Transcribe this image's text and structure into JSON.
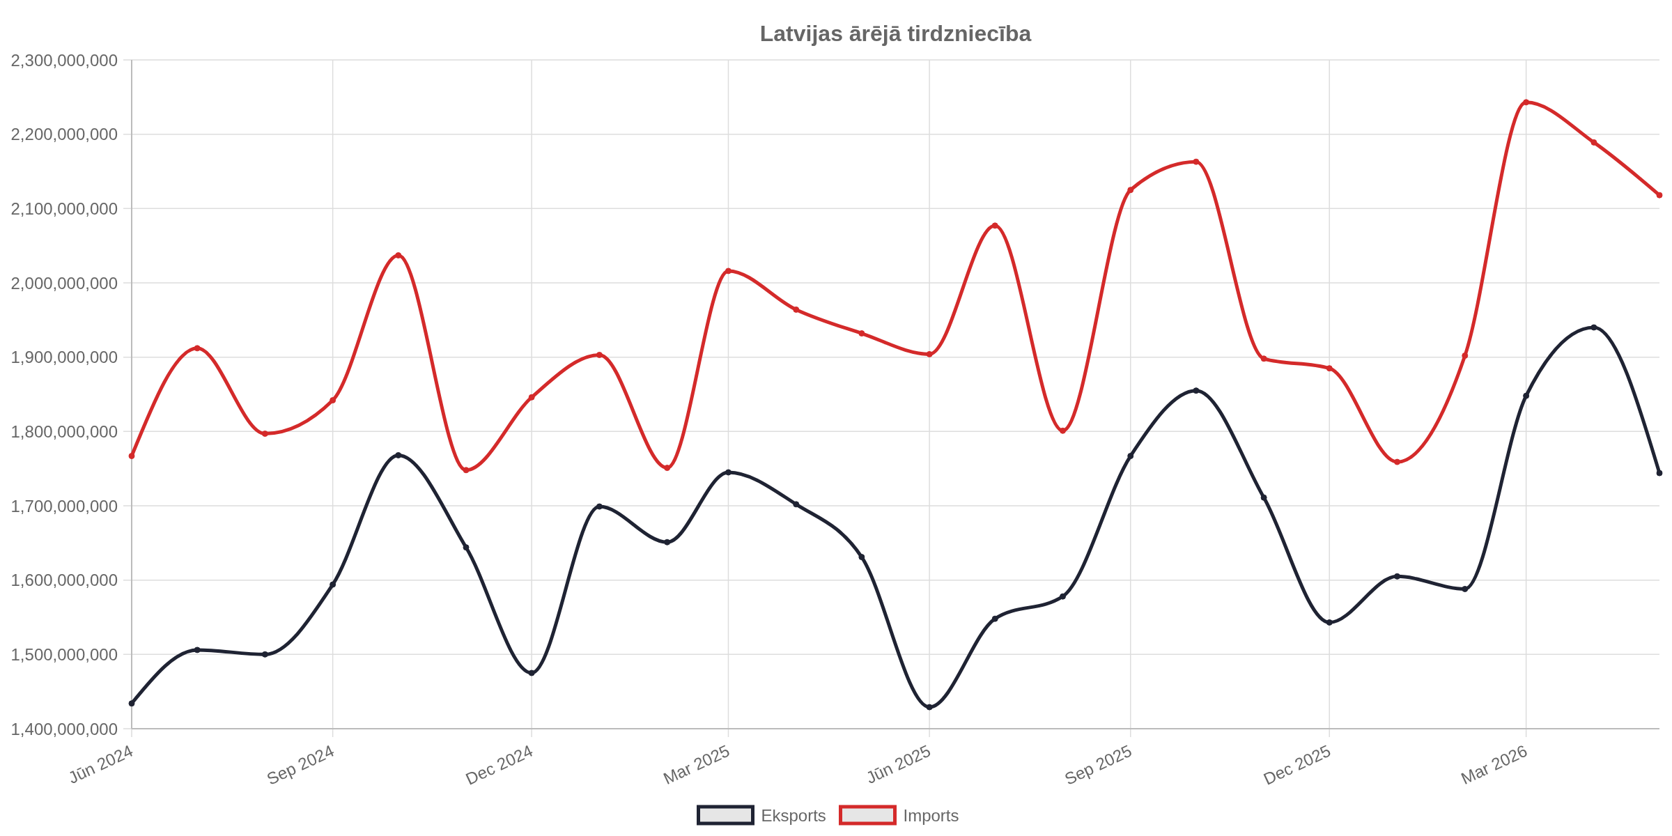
{
  "chart_data": {
    "type": "line",
    "title": "Latvijas ārējā tirdzniecība",
    "x": [
      "2024-06",
      "2024-07",
      "2024-08",
      "2024-09",
      "2024-10",
      "2024-11",
      "2024-12",
      "2025-01",
      "2025-02",
      "2025-03",
      "2025-04",
      "2025-05",
      "2025-06",
      "2025-07",
      "2025-08",
      "2025-09",
      "2025-10",
      "2025-11",
      "2025-12",
      "2026-01",
      "2026-02",
      "2026-03",
      "2026-04",
      "2026-05"
    ],
    "series": [
      {
        "name": "Eksports",
        "color": "#1f2333",
        "values": [
          1434000000,
          1506000000,
          1500000000,
          1594000000,
          1768000000,
          1644000000,
          1475000000,
          1699000000,
          1651000000,
          1745000000,
          1702000000,
          1631000000,
          1429000000,
          1548000000,
          1578000000,
          1767000000,
          1855000000,
          1711000000,
          1543000000,
          1605000000,
          1588000000,
          1848000000,
          1940000000,
          1744000000
        ]
      },
      {
        "name": "Imports",
        "color": "#d42a2a",
        "values": [
          1767000000,
          1912000000,
          1797000000,
          1842000000,
          2037000000,
          1748000000,
          1846000000,
          1903000000,
          1751000000,
          2016000000,
          1964000000,
          1932000000,
          1904000000,
          2077000000,
          1801000000,
          2125000000,
          2163000000,
          1898000000,
          1885000000,
          1759000000,
          1902000000,
          2243000000,
          2189000000,
          2118000000
        ]
      }
    ],
    "xlim": [
      "2024-06",
      "2026-05"
    ],
    "xticks": [
      {
        "value": "2024-06",
        "label": "Jūn 2024"
      },
      {
        "value": "2024-09",
        "label": "Sep 2024"
      },
      {
        "value": "2024-12",
        "label": "Dec 2024"
      },
      {
        "value": "2025-03",
        "label": "Mar 2025"
      },
      {
        "value": "2025-06",
        "label": "Jūn 2025"
      },
      {
        "value": "2025-09",
        "label": "Sep 2025"
      },
      {
        "value": "2025-12",
        "label": "Dec 2025"
      },
      {
        "value": "2026-03",
        "label": "Mar 2026"
      }
    ],
    "ylim": [
      1400000000,
      2300000000
    ],
    "yticks": [
      {
        "value": 1400000000,
        "label": "1,400,000,000"
      },
      {
        "value": 1500000000,
        "label": "1,500,000,000"
      },
      {
        "value": 1600000000,
        "label": "1,600,000,000"
      },
      {
        "value": 1700000000,
        "label": "1,700,000,000"
      },
      {
        "value": 1800000000,
        "label": "1,800,000,000"
      },
      {
        "value": 1900000000,
        "label": "1,900,000,000"
      },
      {
        "value": 2000000000,
        "label": "2,000,000,000"
      },
      {
        "value": 2100000000,
        "label": "2,100,000,000"
      },
      {
        "value": 2200000000,
        "label": "2,200,000,000"
      },
      {
        "value": 2300000000,
        "label": "2,300,000,000"
      }
    ],
    "grid": true,
    "legend": "bottom",
    "marker": "circle",
    "line_style": "solid"
  }
}
